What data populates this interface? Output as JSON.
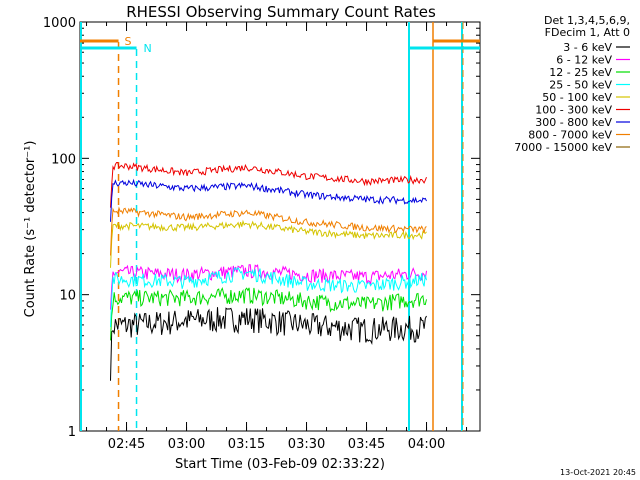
{
  "chart_data": {
    "type": "line",
    "title": "RHESSI Observing Summary Count Rates",
    "xlabel": "Start Time (03-Feb-09 02:33:22)",
    "ylabel": "Count Rate (s⁻¹ detector⁻¹)",
    "y_scale": "log",
    "ylim": [
      1,
      1000
    ],
    "xlim_minutes": [
      "02:33:22",
      "04:13:22"
    ],
    "x_ticks": [
      "02:45",
      "03:00",
      "03:15",
      "03:30",
      "03:45",
      "04:00"
    ],
    "y_ticks": [
      "1",
      "10",
      "100",
      "1000"
    ],
    "legend_header": [
      "Det 1,3,4,5,6,9,",
      "FDecim 1, Att 0"
    ],
    "legend_placement": "top-right outside",
    "timestamp": "13-Oct-2021 20:45",
    "flags": [
      {
        "label": "S",
        "color": "#f07f00",
        "start": "02:43:00",
        "end": "04:01:30"
      },
      {
        "label": "N",
        "color": "#00e5ee",
        "start": "02:47:30",
        "end": "03:56:00"
      }
    ],
    "series": [
      {
        "name": "3 - 6 keV",
        "color": "#000000",
        "values_at_ticks": [
          6.0,
          6.5,
          6.8,
          6.0,
          5.6,
          5.8
        ]
      },
      {
        "name": "6 - 12 keV",
        "color": "#ff00ff",
        "values_at_ticks": [
          14.5,
          14.0,
          15.0,
          14.0,
          13.5,
          14.5
        ]
      },
      {
        "name": "12 - 25 keV",
        "color": "#00dd00",
        "values_at_ticks": [
          9.5,
          9.5,
          10.0,
          9.0,
          8.5,
          9.5
        ]
      },
      {
        "name": "25 - 50 keV",
        "color": "#00ffff",
        "values_at_ticks": [
          13.0,
          12.5,
          14.5,
          12.0,
          11.5,
          13.0
        ]
      },
      {
        "name": "50 - 100 keV",
        "color": "#d4c400",
        "values_at_ticks": [
          32.0,
          31.0,
          33.0,
          29.0,
          27.0,
          27.5
        ]
      },
      {
        "name": "100 - 300 keV",
        "color": "#ee0000",
        "values_at_ticks": [
          88,
          78,
          86,
          74,
          68,
          70
        ]
      },
      {
        "name": "300 - 800 keV",
        "color": "#0000dd",
        "values_at_ticks": [
          66,
          60,
          63,
          54,
          50,
          49
        ]
      },
      {
        "name": "800 - 7000 keV",
        "color": "#f07f00",
        "values_at_ticks": [
          41,
          37,
          40,
          34,
          31,
          30
        ]
      },
      {
        "name": "7000 - 15000 keV",
        "color": "#8b6508",
        "values_at_ticks": [
          null,
          null,
          null,
          null,
          null,
          null
        ]
      }
    ]
  }
}
